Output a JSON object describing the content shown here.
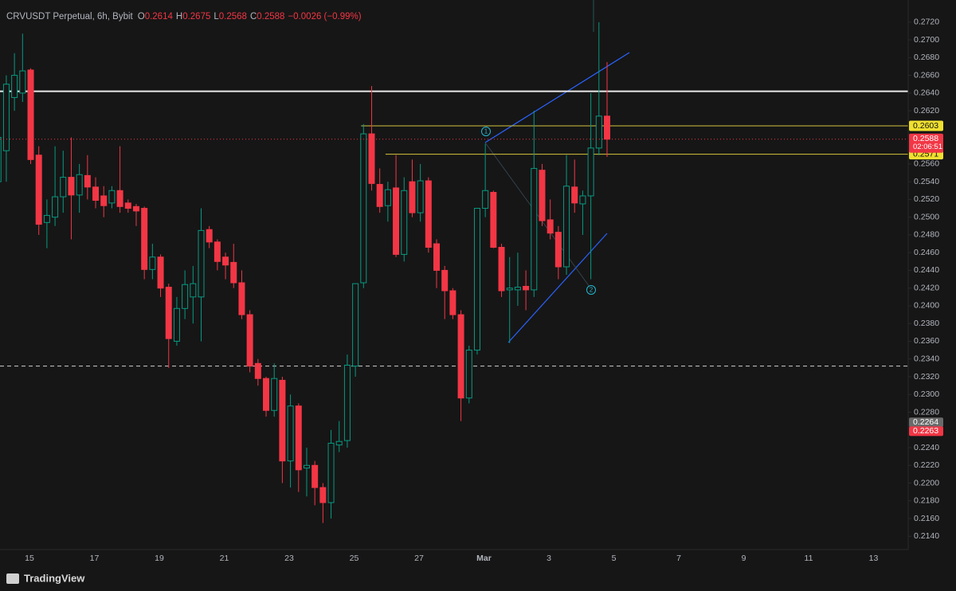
{
  "chart_data": {
    "type": "candlestick",
    "title": "CRVUSDT Perpetual, 6h, Bybit",
    "ohlc_letters": [
      "O",
      "H",
      "L",
      "C"
    ],
    "change": "−0.0026 (−0.99%)",
    "open": [
      0.254,
      0.2575,
      0.2635,
      0.264,
      0.2666,
      0.257,
      0.2494,
      0.25,
      0.2523,
      0.2545,
      0.2525,
      0.2547,
      0.2534,
      0.2524,
      0.2516,
      0.253,
      0.2516,
      0.2512,
      0.251,
      0.2441,
      0.2455,
      0.2421,
      0.236,
      0.2397,
      0.241,
      0.241,
      0.2486,
      0.2472,
      0.2455,
      0.2449,
      0.2426,
      0.239,
      0.2335,
      0.2318,
      0.2282,
      0.2316,
      0.2225,
      0.2287,
      0.2217,
      0.222,
      0.2195,
      0.2178,
      0.2243,
      0.2248,
      0.2332,
      0.2426,
      0.2594,
      0.2537,
      0.2513,
      0.2533,
      0.2458,
      0.254,
      0.2505,
      0.2541,
      0.247,
      0.244,
      0.2417,
      0.239,
      0.2296,
      0.235,
      0.251,
      0.2528,
      0.2466,
      0.2418,
      0.2418,
      0.2422,
      0.2418,
      0.2553,
      0.2497,
      0.2483,
      0.2444,
      0.2534,
      0.2515,
      0.2524,
      0.2578,
      0.2614
    ],
    "high": [
      0.26,
      0.266,
      0.2685,
      0.2707,
      0.2668,
      0.258,
      0.252,
      0.258,
      0.2575,
      0.259,
      0.256,
      0.257,
      0.2545,
      0.2535,
      0.2535,
      0.258,
      0.252,
      0.2515,
      0.2512,
      0.247,
      0.2458,
      0.2425,
      0.241,
      0.244,
      0.2445,
      0.251,
      0.249,
      0.2475,
      0.246,
      0.247,
      0.244,
      0.2395,
      0.234,
      0.232,
      0.2335,
      0.232,
      0.23,
      0.229,
      0.224,
      0.2225,
      0.22,
      0.226,
      0.227,
      0.2345,
      0.2425,
      0.2605,
      0.2648,
      0.2555,
      0.254,
      0.257,
      0.2545,
      0.2565,
      0.256,
      0.2545,
      0.2475,
      0.2445,
      0.242,
      0.2395,
      0.2355,
      0.251,
      0.2583,
      0.253,
      0.247,
      0.2455,
      0.246,
      0.244,
      0.262,
      0.256,
      0.252,
      0.249,
      0.257,
      0.2565,
      0.253,
      0.264,
      0.272,
      0.2675
    ],
    "low": [
      0.251,
      0.254,
      0.262,
      0.263,
      0.256,
      0.248,
      0.2465,
      0.249,
      0.2505,
      0.2475,
      0.2505,
      0.252,
      0.251,
      0.25,
      0.251,
      0.2505,
      0.2505,
      0.249,
      0.243,
      0.243,
      0.241,
      0.233,
      0.2355,
      0.2385,
      0.238,
      0.236,
      0.2465,
      0.244,
      0.243,
      0.242,
      0.2385,
      0.2325,
      0.231,
      0.2275,
      0.2275,
      0.22,
      0.2195,
      0.219,
      0.2185,
      0.2175,
      0.2155,
      0.216,
      0.2235,
      0.224,
      0.232,
      0.242,
      0.253,
      0.2505,
      0.2495,
      0.2455,
      0.245,
      0.25,
      0.2495,
      0.246,
      0.242,
      0.2385,
      0.2385,
      0.227,
      0.229,
      0.2345,
      0.25,
      0.2465,
      0.241,
      0.2358,
      0.24,
      0.2395,
      0.241,
      0.249,
      0.2475,
      0.243,
      0.2435,
      0.2505,
      0.248,
      0.243,
      0.257,
      0.2568
    ],
    "close": [
      0.259,
      0.265,
      0.266,
      0.2665,
      0.2565,
      0.2492,
      0.2502,
      0.2523,
      0.2545,
      0.2525,
      0.2548,
      0.2534,
      0.2519,
      0.2513,
      0.253,
      0.2512,
      0.251,
      0.2507,
      0.2441,
      0.2455,
      0.242,
      0.2363,
      0.2397,
      0.2424,
      0.2425,
      0.2485,
      0.2472,
      0.245,
      0.2446,
      0.2426,
      0.239,
      0.2332,
      0.2318,
      0.2282,
      0.2318,
      0.2225,
      0.2287,
      0.2215,
      0.222,
      0.2195,
      0.2178,
      0.2245,
      0.2247,
      0.2333,
      0.2425,
      0.2594,
      0.2538,
      0.2512,
      0.2531,
      0.2458,
      0.253,
      0.2505,
      0.2541,
      0.2466,
      0.244,
      0.2417,
      0.239,
      0.2296,
      0.235,
      0.251,
      0.253,
      0.2466,
      0.2417,
      0.242,
      0.2421,
      0.2418,
      0.2555,
      0.2496,
      0.2482,
      0.2444,
      0.2535,
      0.2516,
      0.2524,
      0.2578,
      0.2614,
      0.2588
    ],
    "up_color": "#089981",
    "down_color": "#f23645",
    "ylim": [
      0.2125,
      0.2745
    ],
    "yticks": [
      {
        "value": 0.272,
        "label": "0.2720"
      },
      {
        "value": 0.27,
        "label": "0.2700"
      },
      {
        "value": 0.268,
        "label": "0.2680"
      },
      {
        "value": 0.266,
        "label": "0.2660"
      },
      {
        "value": 0.264,
        "label": "0.2640"
      },
      {
        "value": 0.262,
        "label": "0.2620"
      },
      {
        "value": 0.256,
        "label": "0.2560"
      },
      {
        "value": 0.254,
        "label": "0.2540"
      },
      {
        "value": 0.252,
        "label": "0.2520"
      },
      {
        "value": 0.25,
        "label": "0.2500"
      },
      {
        "value": 0.248,
        "label": "0.2480"
      },
      {
        "value": 0.246,
        "label": "0.2460"
      },
      {
        "value": 0.244,
        "label": "0.2440"
      },
      {
        "value": 0.242,
        "label": "0.2420"
      },
      {
        "value": 0.24,
        "label": "0.2400"
      },
      {
        "value": 0.238,
        "label": "0.2380"
      },
      {
        "value": 0.236,
        "label": "0.2360"
      },
      {
        "value": 0.234,
        "label": "0.2340"
      },
      {
        "value": 0.232,
        "label": "0.2320"
      },
      {
        "value": 0.23,
        "label": "0.2300"
      },
      {
        "value": 0.228,
        "label": "0.2280"
      },
      {
        "value": 0.224,
        "label": "0.2240"
      },
      {
        "value": 0.222,
        "label": "0.2220"
      },
      {
        "value": 0.22,
        "label": "0.2200"
      },
      {
        "value": 0.218,
        "label": "0.2180"
      },
      {
        "value": 0.216,
        "label": "0.2160"
      },
      {
        "value": 0.214,
        "label": "0.2140"
      }
    ],
    "xticks": [
      "15",
      "17",
      "19",
      "21",
      "23",
      "25",
      "27",
      "Mar",
      "3",
      "5",
      "7",
      "9",
      "11",
      "13"
    ],
    "grid": false,
    "levels": [
      {
        "value": 0.2642,
        "color": "#e8e8e8",
        "style": "solid"
      },
      {
        "value": 0.2603,
        "color": "#d4c43a",
        "style": "solid"
      },
      {
        "value": 0.2571,
        "color": "#d4c43a",
        "style": "solid"
      },
      {
        "value": 0.2332,
        "color": "#d0d0d0",
        "style": "dashed"
      }
    ],
    "level_badges": [
      0.2603,
      0.2571
    ],
    "countdown": "02:06:51",
    "price_badges": [
      {
        "value": 0.2264,
        "color": "#6a6a6a"
      },
      {
        "value": 0.2263,
        "color": "#f23645"
      }
    ],
    "annotations": [
      "1",
      "2"
    ]
  },
  "footer": {
    "brand": "TradingView"
  }
}
